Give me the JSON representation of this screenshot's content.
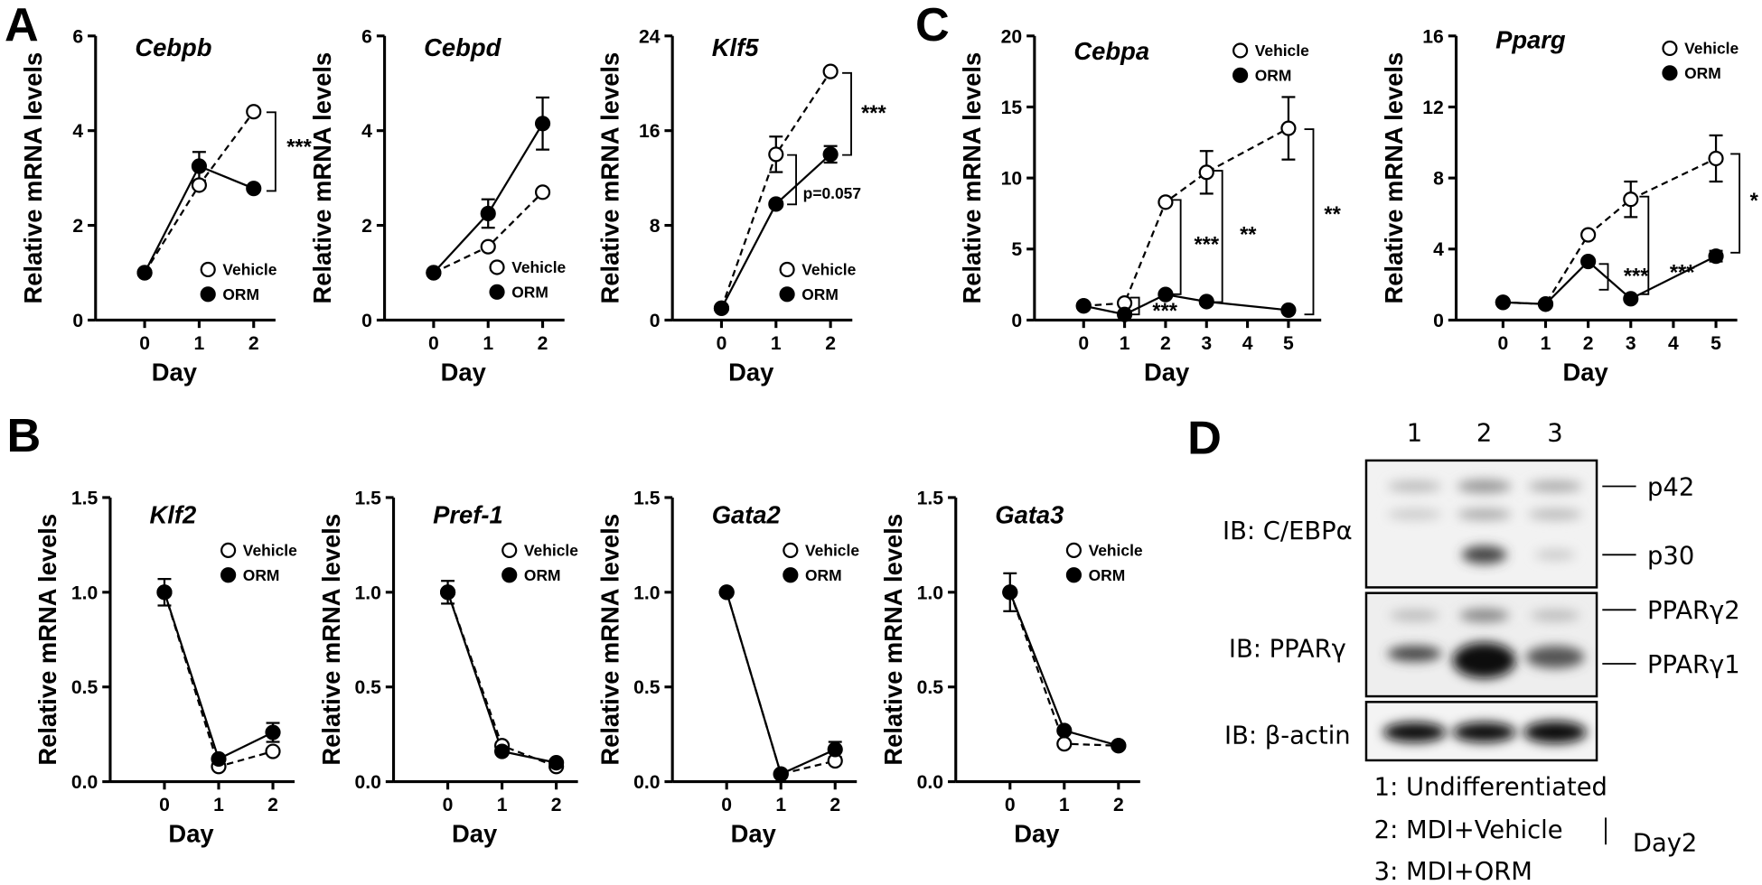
{
  "panels": [
    "A",
    "B",
    "C",
    "D"
  ],
  "chart_data": [
    {
      "type": "line",
      "title": "Cebpb",
      "x_label": "Day",
      "y_label": "Relative mRNA levels",
      "x": [
        0,
        1,
        2
      ],
      "xlim": [
        -0.9,
        2.4
      ],
      "xticks": [
        0,
        1,
        2
      ],
      "ylim": [
        0,
        6
      ],
      "yticks": [
        0,
        2,
        4,
        6
      ],
      "series": [
        {
          "name": "Vehicle",
          "color": "#000000",
          "line_style": "dashed",
          "marker": "open",
          "values": [
            1,
            2.85,
            4.4
          ],
          "errors": [
            null,
            null,
            null
          ]
        },
        {
          "name": "ORM",
          "color": "#000000",
          "line_style": "solid",
          "marker": "filled",
          "values": [
            1,
            3.25,
            2.78
          ],
          "errors": [
            null,
            0.3,
            null
          ]
        }
      ],
      "annotations": [
        "***"
      ]
    },
    {
      "type": "line",
      "title": "Cebpd",
      "x_label": "Day",
      "y_label": "Relative mRNA levels",
      "x": [
        0,
        1,
        2
      ],
      "xlim": [
        -0.9,
        2.4
      ],
      "xticks": [
        0,
        1,
        2
      ],
      "ylim": [
        0,
        6
      ],
      "yticks": [
        0,
        2,
        4,
        6
      ],
      "series": [
        {
          "name": "Vehicle",
          "color": "#000000",
          "line_style": "dashed",
          "marker": "open",
          "values": [
            1,
            1.55,
            2.7
          ],
          "errors": [
            null,
            null,
            null
          ]
        },
        {
          "name": "ORM",
          "color": "#000000",
          "line_style": "solid",
          "marker": "filled",
          "values": [
            1,
            2.25,
            4.15
          ],
          "errors": [
            null,
            0.3,
            0.55
          ]
        }
      ],
      "annotations": []
    },
    {
      "type": "line",
      "title": "Klf5",
      "x_label": "Day",
      "y_label": "Relative mRNA levels",
      "x": [
        0,
        1,
        2
      ],
      "xlim": [
        -0.9,
        2.4
      ],
      "xticks": [
        0,
        1,
        2
      ],
      "ylim": [
        0,
        24
      ],
      "yticks": [
        0,
        8,
        16,
        24
      ],
      "series": [
        {
          "name": "Vehicle",
          "color": "#000000",
          "line_style": "dashed",
          "marker": "open",
          "values": [
            1,
            14,
            21
          ],
          "errors": [
            null,
            1.5,
            null
          ]
        },
        {
          "name": "ORM",
          "color": "#000000",
          "line_style": "solid",
          "marker": "filled",
          "values": [
            1,
            9.8,
            14
          ],
          "errors": [
            null,
            null,
            0.7
          ]
        }
      ],
      "annotations": [
        "***",
        "p=0.057"
      ]
    },
    {
      "type": "line",
      "title": "Cebpa",
      "x_label": "Day",
      "y_label": "Relative mRNA levels",
      "x": [
        0,
        1,
        2,
        3,
        5
      ],
      "xlim": [
        -1.2,
        5.8
      ],
      "xticks": [
        0,
        1,
        2,
        3,
        4,
        5
      ],
      "ylim": [
        0,
        20
      ],
      "yticks": [
        0,
        5,
        10,
        15,
        20
      ],
      "series": [
        {
          "name": "Vehicle",
          "color": "#000000",
          "line_style": "dashed",
          "marker": "open",
          "values": [
            1,
            1.2,
            8.3,
            10.4,
            13.5
          ],
          "errors": [
            null,
            null,
            null,
            1.5,
            2.2
          ]
        },
        {
          "name": "ORM",
          "color": "#000000",
          "line_style": "solid",
          "marker": "filled",
          "values": [
            1,
            0.4,
            1.8,
            1.3,
            0.7
          ],
          "errors": [
            null,
            null,
            null,
            null,
            null
          ]
        }
      ],
      "annotations": [
        "***",
        "***",
        "**",
        "**"
      ]
    },
    {
      "type": "line",
      "title": "Pparg",
      "x_label": "Day",
      "y_label": "Relative mRNA levels",
      "x": [
        0,
        1,
        2,
        3,
        5
      ],
      "xlim": [
        -1.1,
        5.5
      ],
      "xticks": [
        0,
        1,
        2,
        3,
        4,
        5
      ],
      "ylim": [
        0,
        16
      ],
      "yticks": [
        0,
        4,
        8,
        12,
        16
      ],
      "series": [
        {
          "name": "Vehicle",
          "color": "#000000",
          "line_style": "dashed",
          "marker": "open",
          "values": [
            1,
            0.9,
            4.8,
            6.8,
            9.1
          ],
          "errors": [
            null,
            null,
            null,
            1,
            1.3
          ]
        },
        {
          "name": "ORM",
          "color": "#000000",
          "line_style": "solid",
          "marker": "filled",
          "values": [
            1,
            0.9,
            3.3,
            1.2,
            3.6
          ],
          "errors": [
            null,
            null,
            null,
            null,
            0.3
          ]
        }
      ],
      "annotations": [
        "***",
        "***",
        "*"
      ]
    },
    {
      "type": "line",
      "title": "Klf2",
      "x_label": "Day",
      "y_label": "Relative mRNA levels",
      "x": [
        0,
        1,
        2
      ],
      "xlim": [
        -1,
        2.4
      ],
      "xticks": [
        0,
        1,
        2
      ],
      "ylim": [
        0,
        1.5
      ],
      "yticks": [
        {
          "value": 0,
          "label": "0.0"
        },
        0.5,
        {
          "value": 1,
          "label": "1.0"
        },
        1.5
      ],
      "series": [
        {
          "name": "Vehicle",
          "color": "#000000",
          "line_style": "dashed",
          "marker": "open",
          "values": [
            1,
            0.08,
            0.16
          ],
          "errors": [
            null,
            null,
            null
          ]
        },
        {
          "name": "ORM",
          "color": "#000000",
          "line_style": "solid",
          "marker": "filled",
          "values": [
            1,
            0.12,
            0.26
          ],
          "errors": [
            0.07,
            null,
            0.05
          ]
        }
      ],
      "annotations": []
    },
    {
      "type": "line",
      "title": "Pref-1",
      "x_label": "Day",
      "y_label": "Relative mRNA levels",
      "x": [
        0,
        1,
        2
      ],
      "xlim": [
        -1,
        2.4
      ],
      "xticks": [
        0,
        1,
        2
      ],
      "ylim": [
        0,
        1.5
      ],
      "yticks": [
        {
          "value": 0,
          "label": "0.0"
        },
        0.5,
        {
          "value": 1,
          "label": "1.0"
        },
        1.5
      ],
      "series": [
        {
          "name": "Vehicle",
          "color": "#000000",
          "line_style": "dashed",
          "marker": "open",
          "values": [
            1,
            0.19,
            0.08
          ],
          "errors": [
            null,
            null,
            null
          ]
        },
        {
          "name": "ORM",
          "color": "#000000",
          "line_style": "solid",
          "marker": "filled",
          "values": [
            1,
            0.16,
            0.1
          ],
          "errors": [
            0.06,
            null,
            null
          ]
        }
      ],
      "annotations": []
    },
    {
      "type": "line",
      "title": "Gata2",
      "x_label": "Day",
      "y_label": "Relative mRNA levels",
      "x": [
        0,
        1,
        2
      ],
      "xlim": [
        -1,
        2.4
      ],
      "xticks": [
        0,
        1,
        2
      ],
      "ylim": [
        0,
        1.5
      ],
      "yticks": [
        {
          "value": 0,
          "label": "0.0"
        },
        0.5,
        {
          "value": 1,
          "label": "1.0"
        },
        1.5
      ],
      "series": [
        {
          "name": "Vehicle",
          "color": "#000000",
          "line_style": "dashed",
          "marker": "open",
          "values": [
            1,
            0.04,
            0.11
          ],
          "errors": [
            null,
            null,
            null
          ]
        },
        {
          "name": "ORM",
          "color": "#000000",
          "line_style": "solid",
          "marker": "filled",
          "values": [
            1,
            0.04,
            0.17
          ],
          "errors": [
            null,
            null,
            0.04
          ]
        }
      ],
      "annotations": []
    },
    {
      "type": "line",
      "title": "Gata3",
      "x_label": "Day",
      "y_label": "Relative mRNA levels",
      "x": [
        0,
        1,
        2
      ],
      "xlim": [
        -1,
        2.4
      ],
      "xticks": [
        0,
        1,
        2
      ],
      "ylim": [
        0,
        1.5
      ],
      "yticks": [
        {
          "value": 0,
          "label": "0.0"
        },
        0.5,
        {
          "value": 1,
          "label": "1.0"
        },
        1.5
      ],
      "series": [
        {
          "name": "Vehicle",
          "color": "#000000",
          "line_style": "dashed",
          "marker": "open",
          "values": [
            1,
            0.2,
            0.19
          ],
          "errors": [
            null,
            null,
            null
          ]
        },
        {
          "name": "ORM",
          "color": "#000000",
          "line_style": "solid",
          "marker": "filled",
          "values": [
            1,
            0.27,
            0.19
          ],
          "errors": [
            0.1,
            null,
            null
          ]
        }
      ],
      "annotations": []
    }
  ],
  "blot": {
    "lanes": [
      "1",
      "2",
      "3"
    ],
    "rows": [
      "IB: C/EBPα",
      "IB: PPARγ",
      "IB: β-actin"
    ],
    "markers": [
      "p42",
      "p30",
      "PPARγ2",
      "PPARγ1"
    ],
    "legend": [
      "1: Undifferentiated",
      "2: MDI+Vehicle",
      "3: MDI+ORM"
    ],
    "day_label": "Day2"
  }
}
